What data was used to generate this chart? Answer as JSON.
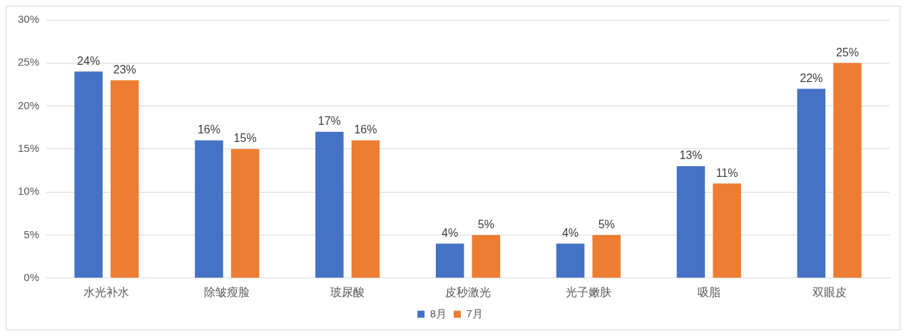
{
  "chart_data": {
    "type": "bar",
    "categories": [
      "水光补水",
      "除皱瘦脸",
      "玻尿酸",
      "皮秒激光",
      "光子嫩肤",
      "吸脂",
      "双眼皮"
    ],
    "series": [
      {
        "name": "8月",
        "color": "#4472c4",
        "values": [
          24,
          16,
          17,
          4,
          4,
          13,
          22
        ],
        "value_labels": [
          "24%",
          "16%",
          "17%",
          "4%",
          "4%",
          "13%",
          "22%"
        ]
      },
      {
        "name": "7月",
        "color": "#ed7d31",
        "values": [
          23,
          15,
          16,
          5,
          5,
          11,
          25
        ],
        "value_labels": [
          "23%",
          "15%",
          "16%",
          "5%",
          "5%",
          "11%",
          "25%"
        ]
      }
    ],
    "ylim": [
      0,
      30
    ],
    "yticks": [
      {
        "value": 0,
        "label": "0%"
      },
      {
        "value": 5,
        "label": "5%"
      },
      {
        "value": 10,
        "label": "10%"
      },
      {
        "value": 15,
        "label": "15%"
      },
      {
        "value": 20,
        "label": "20%"
      },
      {
        "value": 25,
        "label": "25%"
      },
      {
        "value": 30,
        "label": "30%"
      }
    ],
    "grid": "y",
    "legend": "bottom"
  }
}
